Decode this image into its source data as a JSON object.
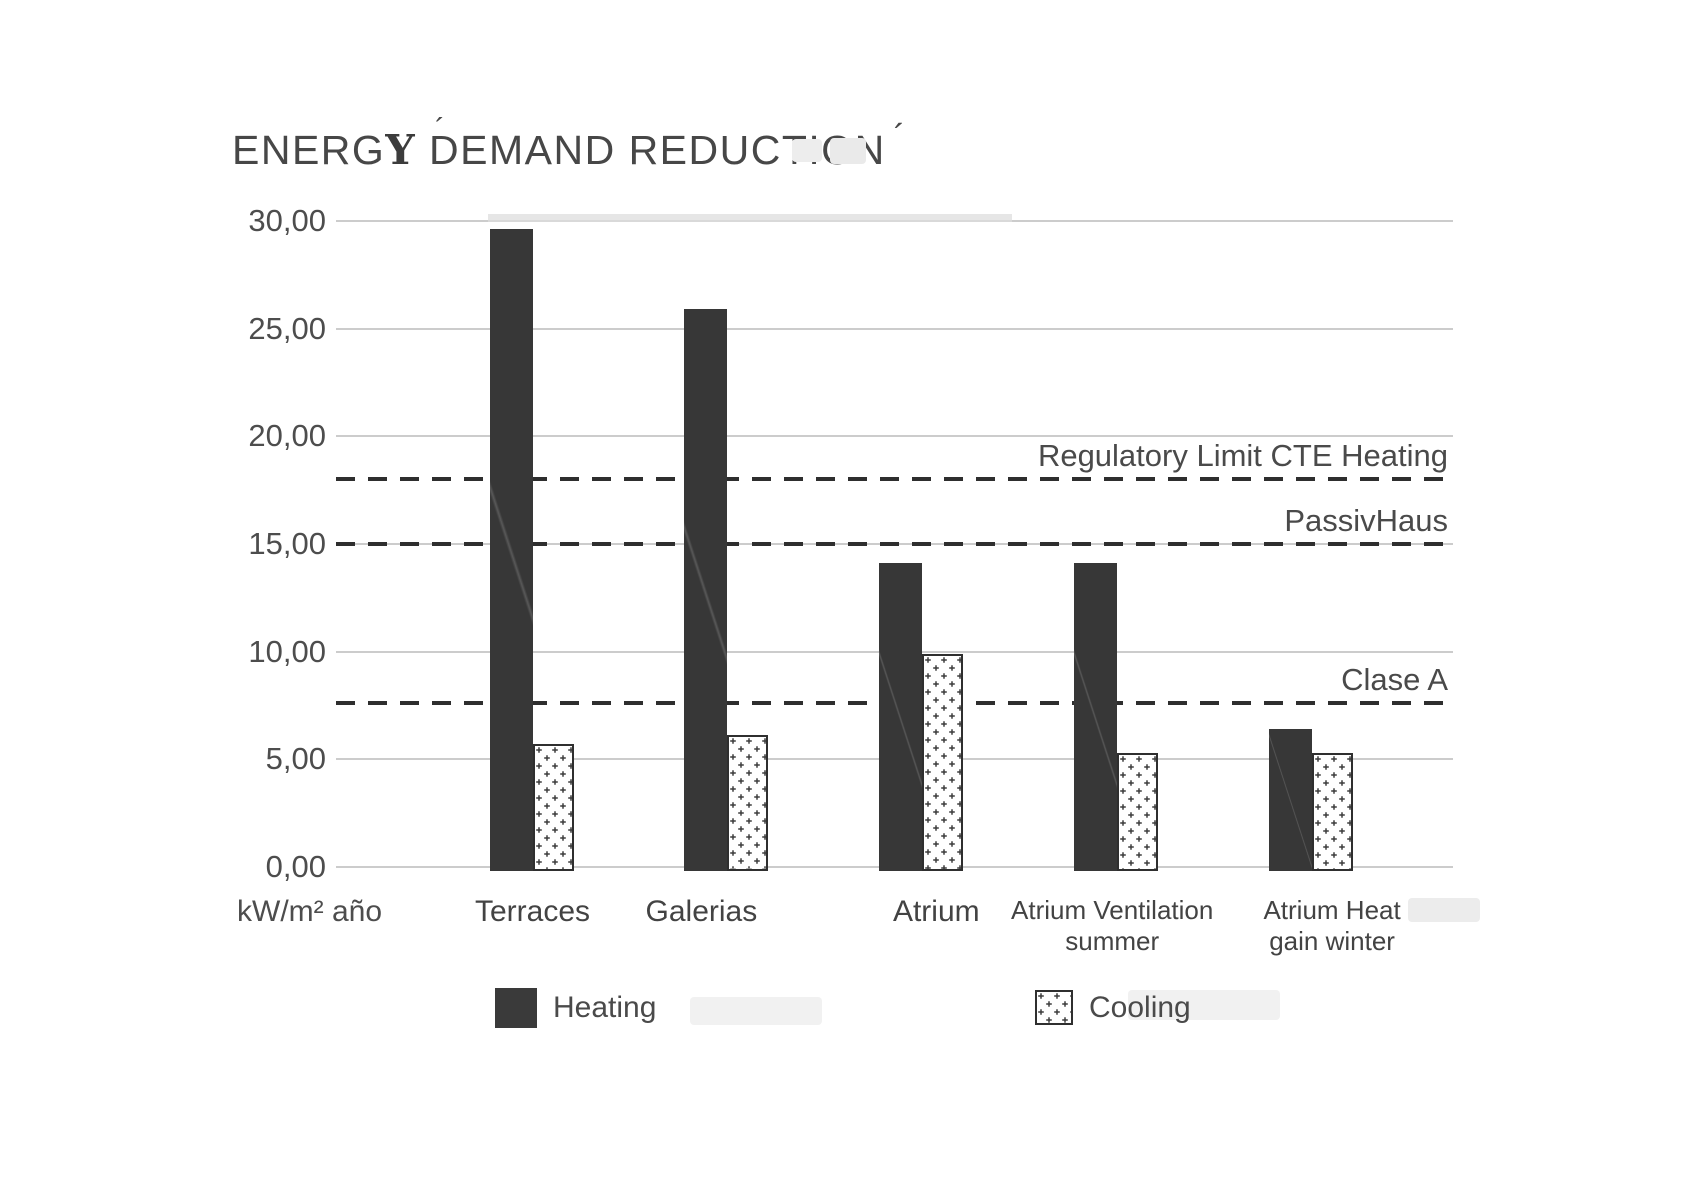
{
  "title": {
    "pre": "ENERG",
    "serif_y": "Y",
    "mid": " ",
    "d": "D",
    "rest": "EMAND REDUCTION",
    "d_accent": "´",
    "end_accent": "´"
  },
  "axis": {
    "unit_label": "kW/m² año"
  },
  "legend": {
    "heating_label": "Heating",
    "cooling_label": "Cooling"
  },
  "colors": {
    "bar_heating": "#373737",
    "cooling_fill": "#ffffff",
    "cooling_border": "#2f2f2f",
    "pattern_plus": "#3d3d3d",
    "dashed_line": "#2e2e2e",
    "gridline": "#cccccc",
    "text": "#4a4a4a",
    "background": "#ffffff"
  },
  "chart_data": {
    "type": "bar",
    "title": "ENERGY DEMAND REDUCTION",
    "xlabel": "",
    "ylabel": "kW/m² año",
    "ylim": [
      0,
      30
    ],
    "grid": true,
    "legend_position": "bottom",
    "categories": [
      "Terraces",
      "Galerias",
      "Atrium",
      "Atrium Ventilation summer",
      "Atrium Heat gain winter"
    ],
    "categories_display": [
      [
        "Terraces"
      ],
      [
        "Galerias"
      ],
      [
        "Atrium"
      ],
      [
        "Atrium Ventilation",
        "summer"
      ],
      [
        "Atrium Heat",
        "gain winter"
      ]
    ],
    "series": [
      {
        "name": "Heating",
        "pattern": "solid",
        "values": [
          29.8,
          26.1,
          14.3,
          14.3,
          6.6
        ]
      },
      {
        "name": "Cooling",
        "pattern": "plus-dotted",
        "values": [
          5.9,
          6.3,
          10.1,
          5.5,
          5.5
        ]
      }
    ],
    "reference_lines": [
      {
        "label": "Regulatory Limit CTE Heating",
        "value": 18.0
      },
      {
        "label": "PassivHaus",
        "value": 15.0
      },
      {
        "label": "Clase A",
        "value": 7.6
      }
    ],
    "yticks": [
      {
        "value": 30,
        "label": "30,00"
      },
      {
        "value": 25,
        "label": "25,00"
      },
      {
        "value": 20,
        "label": "20,00"
      },
      {
        "value": 15,
        "label": "15,00"
      },
      {
        "value": 10,
        "label": "10,00"
      },
      {
        "value": 5,
        "label": "5,00"
      },
      {
        "value": 0,
        "label": "0,00"
      }
    ]
  }
}
